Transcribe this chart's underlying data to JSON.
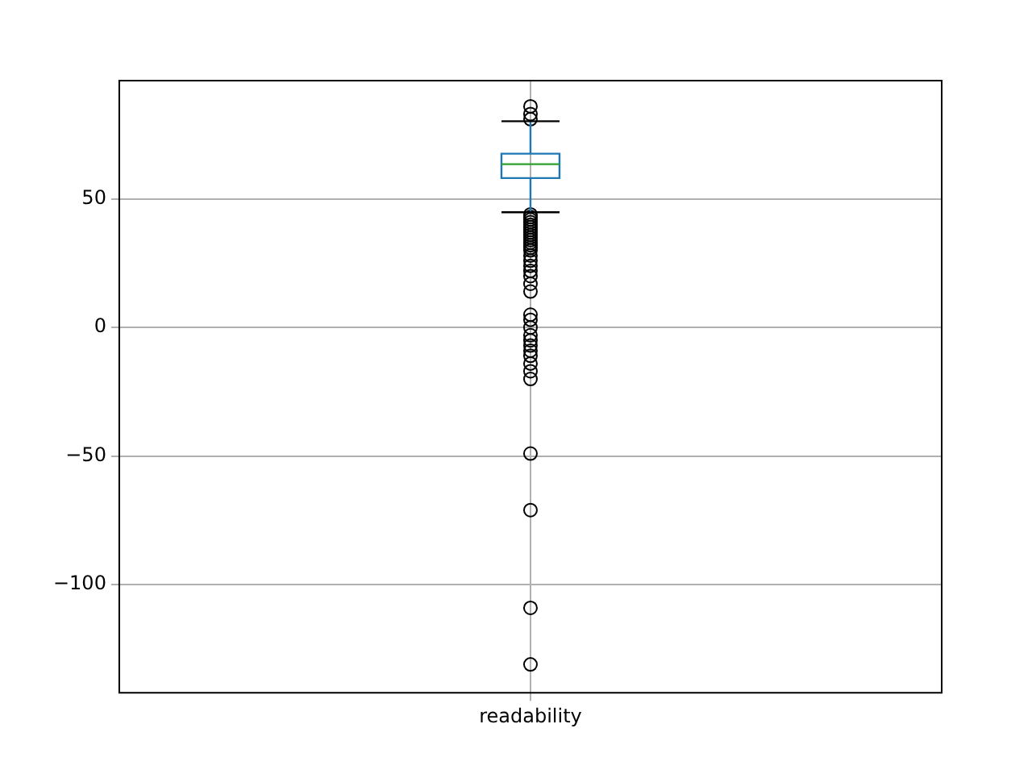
{
  "chart_data": {
    "type": "box",
    "categories": [
      "readability"
    ],
    "series": [
      {
        "color": "#1f77b4",
        "boxes": [
          {
            "low": 44.8,
            "q1": 58.1,
            "median": 63.5,
            "q3": 67.6,
            "high": 80.2,
            "outliers": [
              86,
              83,
              81,
              44,
              43,
              42,
              41,
              40,
              39,
              38,
              37,
              36,
              35,
              34,
              33,
              32,
              31,
              30,
              28,
              26,
              24,
              22,
              20,
              17,
              14,
              5,
              3,
              0,
              -3,
              -5,
              -7,
              -9,
              -11,
              -14,
              -17,
              -20,
              -49,
              -71,
              -109,
              -131
            ]
          }
        ]
      }
    ],
    "ylim": [
      -142,
      96
    ],
    "yticks": [
      {
        "value": -100,
        "label": "−100"
      },
      {
        "value": -50,
        "label": "−50"
      },
      0,
      50
    ],
    "grid": true,
    "marker": "circle"
  }
}
